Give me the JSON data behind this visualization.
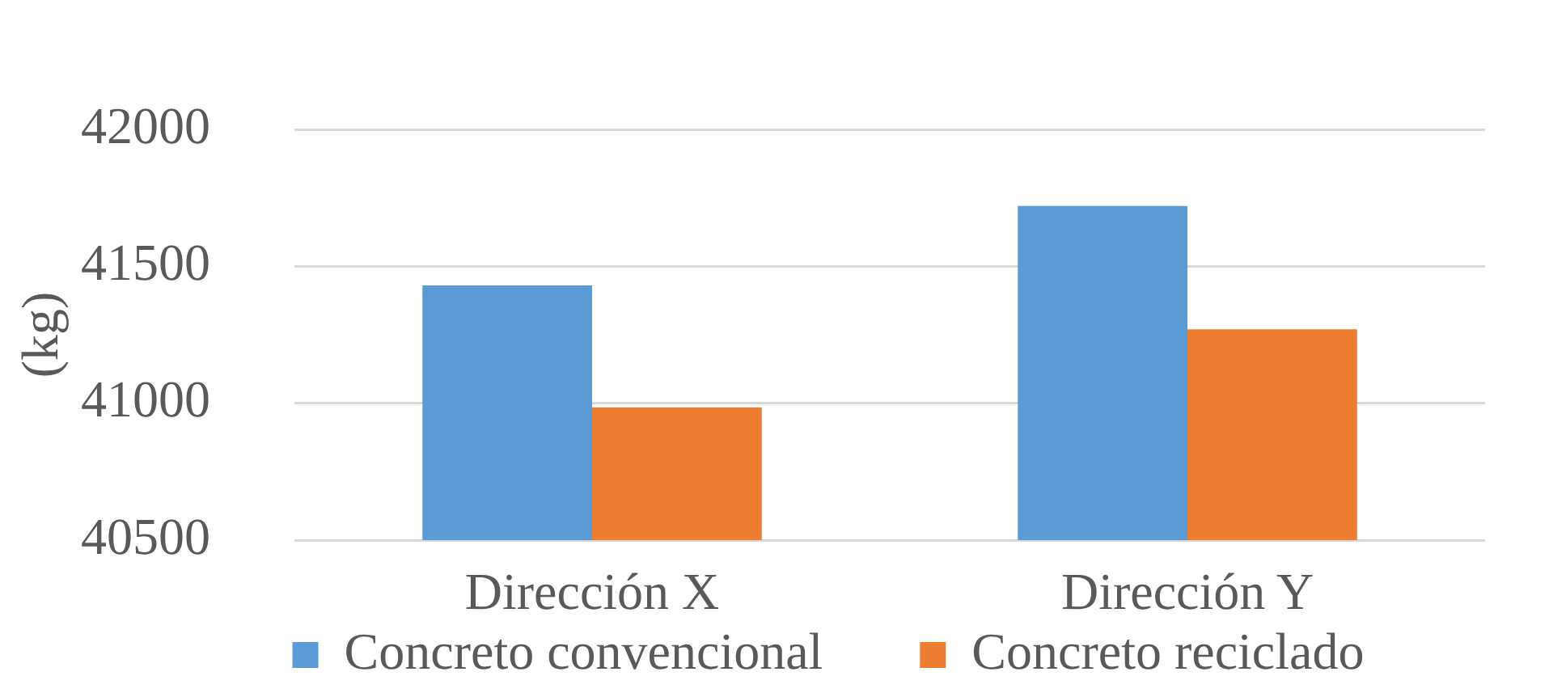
{
  "chart_data": {
    "type": "bar",
    "ylabel": "(kg)",
    "categories": [
      "Dirección X",
      "Dirección Y"
    ],
    "series": [
      {
        "name": "Concreto convencional",
        "color": "#5b9bd5",
        "values": [
          41430,
          41720
        ]
      },
      {
        "name": "Concreto reciclado",
        "color": "#ed7d31",
        "values": [
          40985,
          41270
        ]
      }
    ],
    "ylim": [
      40500,
      42000
    ],
    "yticks": [
      40500,
      41000,
      41500,
      42000
    ],
    "grid": "y",
    "legend": "bottom"
  }
}
